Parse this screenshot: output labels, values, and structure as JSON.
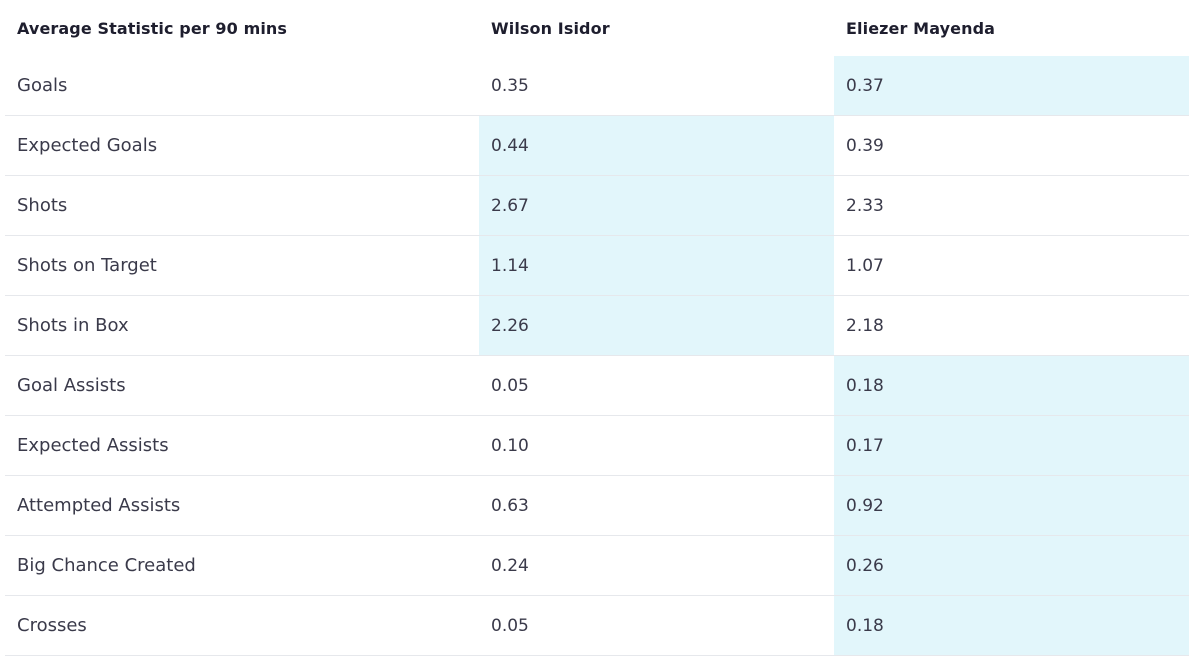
{
  "table": {
    "header": {
      "stat_label": "Average Statistic per 90 mins",
      "player_a": "Wilson Isidor",
      "player_b": "Eliezer Mayenda"
    },
    "highlight_color": "#e2f6fb",
    "rows": [
      {
        "stat": "Goals",
        "a": "0.35",
        "b": "0.37",
        "leader": "b"
      },
      {
        "stat": "Expected Goals",
        "a": "0.44",
        "b": "0.39",
        "leader": "a"
      },
      {
        "stat": "Shots",
        "a": "2.67",
        "b": "2.33",
        "leader": "a"
      },
      {
        "stat": "Shots on Target",
        "a": "1.14",
        "b": "1.07",
        "leader": "a"
      },
      {
        "stat": "Shots in Box",
        "a": "2.26",
        "b": "2.18",
        "leader": "a"
      },
      {
        "stat": "Goal Assists",
        "a": "0.05",
        "b": "0.18",
        "leader": "b"
      },
      {
        "stat": "Expected Assists",
        "a": "0.10",
        "b": "0.17",
        "leader": "b"
      },
      {
        "stat": "Attempted Assists",
        "a": "0.63",
        "b": "0.92",
        "leader": "b"
      },
      {
        "stat": "Big Chance Created",
        "a": "0.24",
        "b": "0.26",
        "leader": "b"
      },
      {
        "stat": "Crosses",
        "a": "0.05",
        "b": "0.18",
        "leader": "b"
      }
    ]
  }
}
